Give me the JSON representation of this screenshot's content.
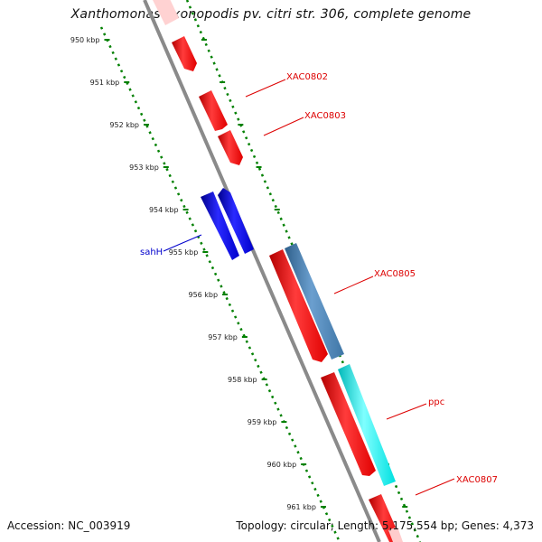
{
  "title": "Xanthomonas axonopodis pv. citri str. 306, complete genome",
  "accession": "Accession: NC_003919",
  "summary": "Topology: circular; Length: 5,175,554 bp; Genes: 4,373",
  "ticks": [
    "950 kbp",
    "951 kbp",
    "952 kbp",
    "953 kbp",
    "954 kbp",
    "955 kbp",
    "956 kbp",
    "957 kbp",
    "958 kbp",
    "959 kbp",
    "960 kbp",
    "961 kbp"
  ],
  "labels": {
    "XAC0802": "XAC0802",
    "XAC0803": "XAC0803",
    "sahH": "sahH",
    "XAC0805": "XAC0805",
    "ppc": "ppc",
    "XAC0807": "XAC0807"
  },
  "colors": {
    "backbone": "#8a8a8a",
    "ticks": "#008000",
    "gene_red": "#ff0000",
    "gene_blue": "#0000ff",
    "gene_steel": "#4682b4",
    "gene_cyan": "#00ffff",
    "gene_faded": "#ffcccc",
    "label_red": "#dd0000",
    "label_blue": "#0000cc"
  }
}
